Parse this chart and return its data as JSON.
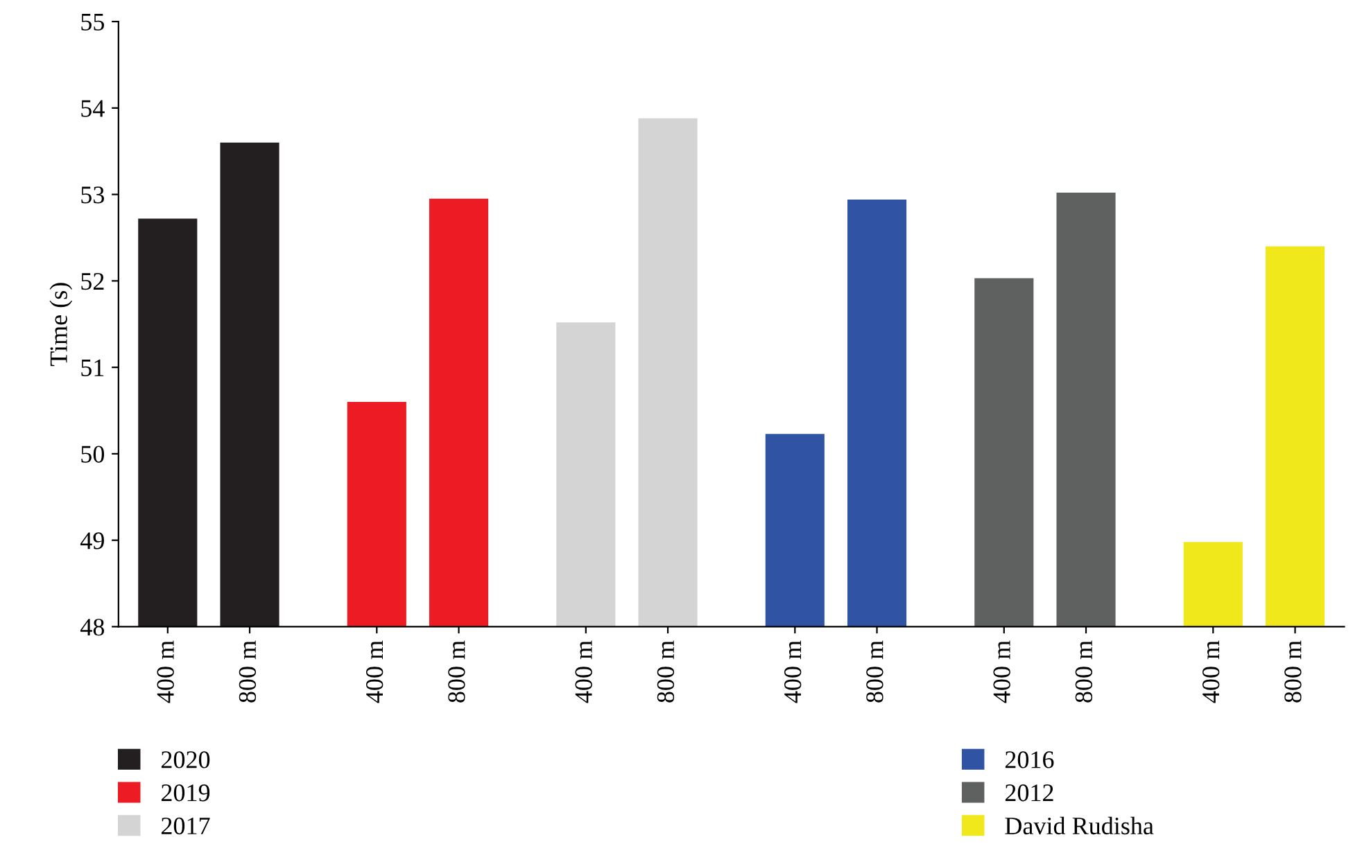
{
  "chart_data": {
    "type": "bar",
    "ylabel": "Time (s)",
    "categories": [
      "400 m",
      "800 m",
      "400 m",
      "800 m",
      "400 m",
      "800 m",
      "400 m",
      "800 m",
      "400 m",
      "800 m",
      "400 m",
      "800 m"
    ],
    "series": [
      {
        "name": "2020",
        "color": "#231f20",
        "values": [
          52.72,
          53.6,
          null,
          null,
          null,
          null,
          null,
          null,
          null,
          null,
          null,
          null
        ]
      },
      {
        "name": "2019",
        "color": "#ed1c24",
        "values": [
          null,
          null,
          50.6,
          52.95,
          null,
          null,
          null,
          null,
          null,
          null,
          null,
          null
        ]
      },
      {
        "name": "2017",
        "color": "#d4d4d4",
        "values": [
          null,
          null,
          null,
          null,
          51.52,
          53.88,
          null,
          null,
          null,
          null,
          null,
          null
        ]
      },
      {
        "name": "2016",
        "color": "#3153a4",
        "values": [
          null,
          null,
          null,
          null,
          null,
          null,
          50.23,
          52.94,
          null,
          null,
          null,
          null
        ]
      },
      {
        "name": "2012",
        "color": "#5f6060",
        "values": [
          null,
          null,
          null,
          null,
          null,
          null,
          null,
          null,
          52.03,
          53.02,
          null,
          null
        ]
      },
      {
        "name": "David Rudisha",
        "color": "#f0e81a",
        "values": [
          null,
          null,
          null,
          null,
          null,
          null,
          null,
          null,
          null,
          null,
          48.98,
          52.4
        ]
      }
    ],
    "ylim": [
      48,
      55
    ],
    "yticks": [
      48,
      49,
      50,
      51,
      52,
      53,
      54,
      55
    ],
    "grid": false,
    "legend": "bottom"
  }
}
